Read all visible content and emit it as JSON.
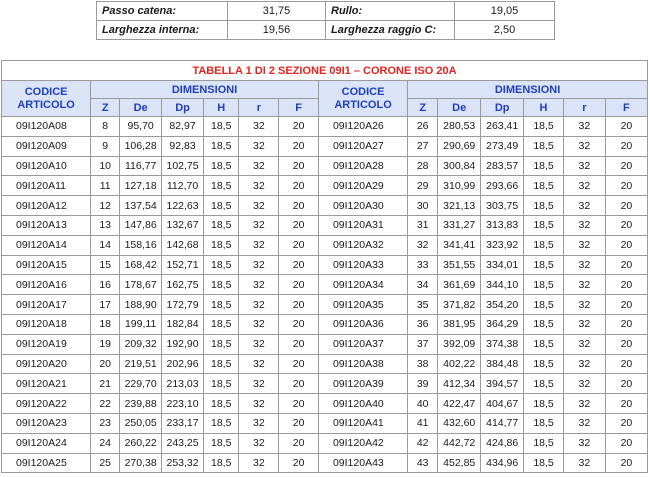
{
  "params": {
    "rows": [
      {
        "label_left": "Passo catena:",
        "value_left": "31,75",
        "label_right": "Rullo:",
        "value_right": "19,05"
      },
      {
        "label_left": "Larghezza interna:",
        "value_left": "19,56",
        "label_right": "Larghezza raggio C:",
        "value_right": "2,50"
      }
    ]
  },
  "table": {
    "title": "TABELLA 1 DI 2 SEZIONE 09I1 – CORONE ISO 20A",
    "code_header": [
      "CODICE",
      "ARTICOLO"
    ],
    "dimensions_header": "DIMENSIONI",
    "columns": [
      "Z",
      "De",
      "Dp",
      "H",
      "r",
      "F"
    ],
    "left_rows": [
      [
        "09I120A08",
        "8",
        "95,70",
        "82,97",
        "18,5",
        "32",
        "20"
      ],
      [
        "09I120A09",
        "9",
        "106,28",
        "92,83",
        "18,5",
        "32",
        "20"
      ],
      [
        "09I120A10",
        "10",
        "116,77",
        "102,75",
        "18,5",
        "32",
        "20"
      ],
      [
        "09I120A11",
        "11",
        "127,18",
        "112,70",
        "18,5",
        "32",
        "20"
      ],
      [
        "09I120A12",
        "12",
        "137,54",
        "122,63",
        "18,5",
        "32",
        "20"
      ],
      [
        "09I120A13",
        "13",
        "147,86",
        "132,67",
        "18,5",
        "32",
        "20"
      ],
      [
        "09I120A14",
        "14",
        "158,16",
        "142,68",
        "18,5",
        "32",
        "20"
      ],
      [
        "09I120A15",
        "15",
        "168,42",
        "152,71",
        "18,5",
        "32",
        "20"
      ],
      [
        "09I120A16",
        "16",
        "178,67",
        "162,75",
        "18,5",
        "32",
        "20"
      ],
      [
        "09I120A17",
        "17",
        "188,90",
        "172,79",
        "18,5",
        "32",
        "20"
      ],
      [
        "09I120A18",
        "18",
        "199,11",
        "182,84",
        "18,5",
        "32",
        "20"
      ],
      [
        "09I120A19",
        "19",
        "209,32",
        "192,90",
        "18,5",
        "32",
        "20"
      ],
      [
        "09I120A20",
        "20",
        "219,51",
        "202,96",
        "18,5",
        "32",
        "20"
      ],
      [
        "09I120A21",
        "21",
        "229,70",
        "213,03",
        "18,5",
        "32",
        "20"
      ],
      [
        "09I120A22",
        "22",
        "239,88",
        "223,10",
        "18,5",
        "32",
        "20"
      ],
      [
        "09I120A23",
        "23",
        "250,05",
        "233,17",
        "18,5",
        "32",
        "20"
      ],
      [
        "09I120A24",
        "24",
        "260,22",
        "243,25",
        "18,5",
        "32",
        "20"
      ],
      [
        "09I120A25",
        "25",
        "270,38",
        "253,32",
        "18,5",
        "32",
        "20"
      ]
    ],
    "right_rows": [
      [
        "09I120A26",
        "26",
        "280,53",
        "263,41",
        "18,5",
        "32",
        "20"
      ],
      [
        "09I120A27",
        "27",
        "290,69",
        "273,49",
        "18,5",
        "32",
        "20"
      ],
      [
        "09I120A28",
        "28",
        "300,84",
        "283,57",
        "18,5",
        "32",
        "20"
      ],
      [
        "09I120A29",
        "29",
        "310,99",
        "293,66",
        "18,5",
        "32",
        "20"
      ],
      [
        "09I120A30",
        "30",
        "321,13",
        "303,75",
        "18,5",
        "32",
        "20"
      ],
      [
        "09I120A31",
        "31",
        "331,27",
        "313,83",
        "18,5",
        "32",
        "20"
      ],
      [
        "09I120A32",
        "32",
        "341,41",
        "323,92",
        "18,5",
        "32",
        "20"
      ],
      [
        "09I120A33",
        "33",
        "351,55",
        "334,01",
        "18,5",
        "32",
        "20"
      ],
      [
        "09I120A34",
        "34",
        "361,69",
        "344,10",
        "18,5",
        "32",
        "20"
      ],
      [
        "09I120A35",
        "35",
        "371,82",
        "354,20",
        "18,5",
        "32",
        "20"
      ],
      [
        "09I120A36",
        "36",
        "381,95",
        "364,29",
        "18,5",
        "32",
        "20"
      ],
      [
        "09I120A37",
        "37",
        "392,09",
        "374,38",
        "18,5",
        "32",
        "20"
      ],
      [
        "09I120A38",
        "38",
        "402,22",
        "384,48",
        "18,5",
        "32",
        "20"
      ],
      [
        "09I120A39",
        "39",
        "412,34",
        "394,57",
        "18,5",
        "32",
        "20"
      ],
      [
        "09I120A40",
        "40",
        "422,47",
        "404,67",
        "18,5",
        "32",
        "20"
      ],
      [
        "09I120A41",
        "41",
        "432,60",
        "414,77",
        "18,5",
        "32",
        "20"
      ],
      [
        "09I120A42",
        "42",
        "442,72",
        "424,86",
        "18,5",
        "32",
        "20"
      ],
      [
        "09I120A43",
        "43",
        "452,85",
        "434,96",
        "18,5",
        "32",
        "20"
      ]
    ]
  }
}
